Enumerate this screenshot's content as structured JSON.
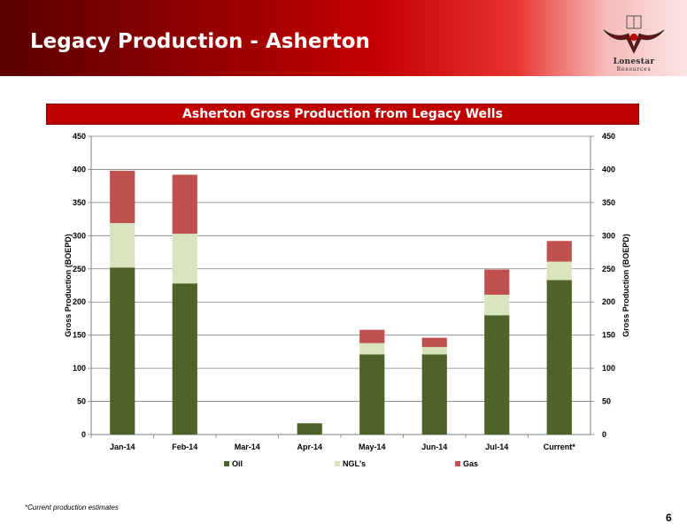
{
  "slide": {
    "title": "Legacy Production - Asherton",
    "logo_name": "Lonestar",
    "logo_sub": "Resources",
    "footnote": "*Current production estimates",
    "page_number": "6"
  },
  "colors": {
    "oil": "#4f6228",
    "ngl": "#d7e4bd",
    "gas": "#c0504d",
    "banner": "#c00000"
  },
  "chart_data": {
    "type": "bar",
    "stacked": true,
    "title": "Asherton Gross Production from Legacy Wells",
    "ylabel": "Gross Production (BOEPD)",
    "y2label": "Gross Production (BOEPD)",
    "ylim": [
      0,
      450
    ],
    "yticks": [
      0,
      50,
      100,
      150,
      200,
      250,
      300,
      350,
      400,
      450
    ],
    "grid": true,
    "legend": "bottom",
    "categories": [
      "Jan-14",
      "Feb-14",
      "Mar-14",
      "Apr-14",
      "May-14",
      "Jun-14",
      "Jul-14",
      "Current*"
    ],
    "series": [
      {
        "name": "Oil",
        "values": [
          252,
          228,
          0,
          17,
          121,
          121,
          180,
          233
        ]
      },
      {
        "name": "NGL's",
        "values": [
          67,
          75,
          0,
          0,
          17,
          11,
          31,
          28
        ]
      },
      {
        "name": "Gas",
        "values": [
          79,
          89,
          0,
          0,
          20,
          14,
          38,
          31
        ]
      }
    ]
  }
}
